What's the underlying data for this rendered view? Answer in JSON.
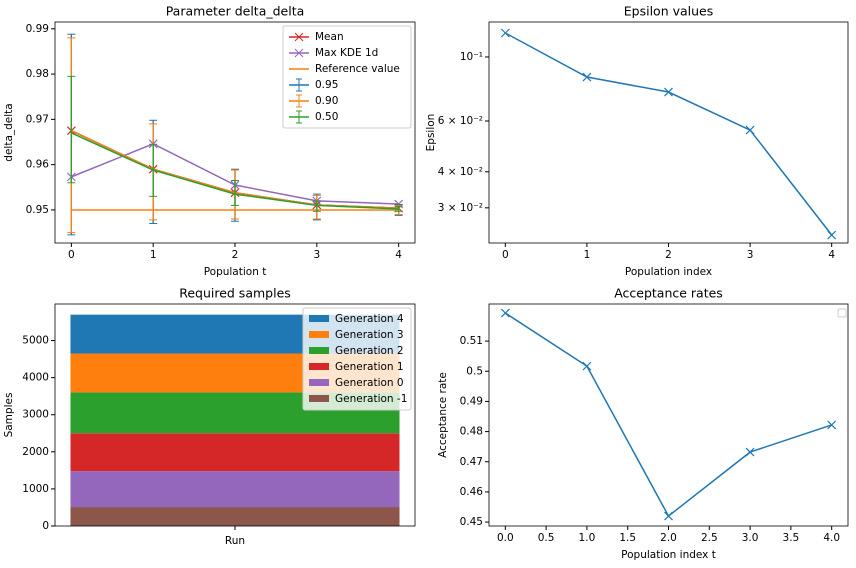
{
  "chart_data": [
    {
      "type": "line",
      "title": "Parameter delta_delta",
      "xlabel": "Population t",
      "ylabel": "delta_delta",
      "x": [
        0,
        1,
        2,
        3,
        4
      ],
      "xlim": [
        -0.2,
        4.2
      ],
      "xticks": [
        0,
        1,
        2,
        3,
        4
      ],
      "ylim": [
        0.9427,
        0.9915
      ],
      "yticks": [
        0.95,
        0.96,
        0.97,
        0.98,
        0.99
      ],
      "legend": "upper right",
      "series": [
        {
          "name": "Mean",
          "color": "#d62728",
          "marker": "x",
          "values": [
            0.9675,
            0.959,
            0.9538,
            0.9511,
            0.9504
          ]
        },
        {
          "name": "Max KDE 1d",
          "color": "#9467bd",
          "marker": "x",
          "values": [
            0.9573,
            0.9646,
            0.9555,
            0.952,
            0.9513
          ]
        },
        {
          "name": "Reference value",
          "color": "#ff7f0e",
          "values": [
            0.95,
            0.95,
            0.95,
            0.95,
            0.95
          ]
        },
        {
          "name": "0.95",
          "color": "#1f77b4",
          "errorbar": true,
          "values": [
            0.9675,
            0.959,
            0.9538,
            0.9511,
            0.9504
          ],
          "lower": [
            0.9445,
            0.947,
            0.9475,
            0.9478,
            0.9488
          ],
          "upper": [
            0.9888,
            0.9698,
            0.959,
            0.9535,
            0.9512
          ]
        },
        {
          "name": "0.90",
          "color": "#ff7f0e",
          "errorbar": true,
          "values": [
            0.9675,
            0.959,
            0.9538,
            0.9511,
            0.9504
          ],
          "lower": [
            0.945,
            0.9478,
            0.948,
            0.948,
            0.949
          ],
          "upper": [
            0.988,
            0.969,
            0.9588,
            0.9532,
            0.951
          ]
        },
        {
          "name": "0.50",
          "color": "#2ca02c",
          "errorbar": true,
          "values": [
            0.967,
            0.9588,
            0.9535,
            0.951,
            0.9502
          ],
          "lower": [
            0.956,
            0.953,
            0.951,
            0.9497,
            0.9497
          ],
          "upper": [
            0.9795,
            0.9645,
            0.9565,
            0.952,
            0.9508
          ]
        }
      ]
    },
    {
      "type": "line",
      "title": "Epsilon values",
      "xlabel": "Population index",
      "ylabel": "Epsilon",
      "x": [
        0,
        1,
        2,
        3,
        4
      ],
      "xlim": [
        -0.2,
        4.2
      ],
      "xticks": [
        0,
        1,
        2,
        3,
        4
      ],
      "yscale": "log",
      "ylim": [
        0.02266,
        0.1322
      ],
      "yticks": [
        {
          "value": 0.1,
          "label": "10⁻¹"
        },
        {
          "value": 0.06,
          "label": "6 × 10⁻²"
        },
        {
          "value": 0.04,
          "label": "4 × 10⁻²"
        },
        {
          "value": 0.03,
          "label": "3 × 10⁻²"
        }
      ],
      "color": "#1f77b4",
      "marker": "x",
      "values": [
        0.1211,
        0.0852,
        0.0756,
        0.0558,
        0.02415
      ]
    },
    {
      "type": "bar",
      "stacked": true,
      "title": "Required samples",
      "ylabel": "Samples",
      "categories": [
        "Run"
      ],
      "ylim": [
        0,
        5985
      ],
      "yticks": [
        0,
        1000,
        2000,
        3000,
        4000,
        5000
      ],
      "legend": "upper right",
      "series": [
        {
          "name": "Generation 4",
          "color": "#1f77b4",
          "values": [
            1048
          ]
        },
        {
          "name": "Generation 3",
          "color": "#ff7f0e",
          "values": [
            1048
          ]
        },
        {
          "name": "Generation 2",
          "color": "#2ca02c",
          "values": [
            1102
          ]
        },
        {
          "name": "Generation 1",
          "color": "#d62728",
          "values": [
            1021
          ]
        },
        {
          "name": "Generation 0",
          "color": "#9467bd",
          "values": [
            968
          ]
        },
        {
          "name": "Generation -1",
          "color": "#8c564b",
          "values": [
            511
          ]
        }
      ]
    },
    {
      "type": "line",
      "title": "Acceptance rates",
      "xlabel": "Population index t",
      "ylabel": "Acceptance rate",
      "x": [
        0,
        1,
        2,
        3,
        4
      ],
      "xlim": [
        -0.2,
        4.2
      ],
      "xticks": [
        {
          "value": 0,
          "label": "0.0"
        },
        0.5,
        {
          "value": 1,
          "label": "1.0"
        },
        1.5,
        {
          "value": 2,
          "label": "2.0"
        },
        2.5,
        {
          "value": 3,
          "label": "3.0"
        },
        3.5,
        {
          "value": 4,
          "label": "4.0"
        }
      ],
      "ylim": [
        0.4487,
        0.5223
      ],
      "yticks": [
        0.45,
        0.46,
        0.47,
        0.48,
        0.49,
        0.5,
        0.51
      ],
      "color": "#1f77b4",
      "marker": "x",
      "values": [
        0.5193,
        0.5017,
        0.452,
        0.4732,
        0.4822
      ]
    }
  ]
}
